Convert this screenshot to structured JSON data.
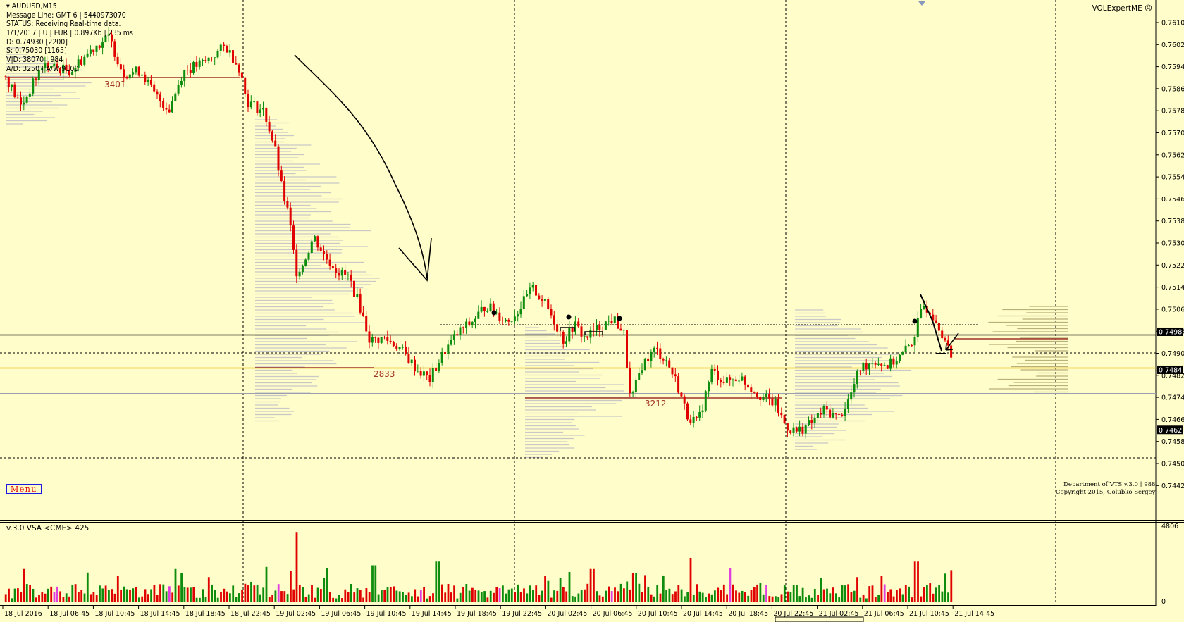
{
  "header": {
    "symbol_timeframe": "AUDUSD,M15",
    "lines": [
      "Message Line: GMT 6 | 5440973070",
      "STATUS:  Receiving Real-time data.",
      "1/1/2017 | U | EUR | 0.897Kb | 235 ms",
      "D: 0.74930  [2200]",
      "S: 0.75030  [1165]",
      "V|D: 38070 | 984",
      "A/D: 3250 | A/W 9100"
    ]
  },
  "indicator_name": "VOLExpertME",
  "menu_label": "Menu",
  "copyright": {
    "line1": "Department of VTS  v.3.0 | 988",
    "line2": "Copyright 2015, Golubko Sergey"
  },
  "subwindow": {
    "title": "v.3.0 VSA <CME> 425",
    "scale_max": "4806",
    "scale_min": "0"
  },
  "price_axis": {
    "ticks": [
      "0.76105",
      "0.76025",
      "0.75945",
      "0.75865",
      "0.75785",
      "0.75705",
      "0.75625",
      "0.75545",
      "0.75465",
      "0.75385",
      "0.75305",
      "0.75225",
      "0.75145",
      "0.75065",
      "0.74985",
      "0.74905",
      "0.74825",
      "0.74745",
      "0.74665",
      "0.74585",
      "0.74505",
      "0.74425"
    ],
    "labels": [
      {
        "price": 0.74983,
        "text": "0.74983"
      },
      {
        "price": 0.74845,
        "text": "0.74845"
      },
      {
        "price": 0.74627,
        "text": "0.74627"
      }
    ]
  },
  "time_axis": [
    "18 Jul 2016",
    "18 Jul 06:45",
    "18 Jul 10:45",
    "18 Jul 14:45",
    "18 Jul 18:45",
    "18 Jul 22:45",
    "19 Jul 02:45",
    "19 Jul 06:45",
    "19 Jul 10:45",
    "19 Jul 14:45",
    "19 Jul 18:45",
    "19 Jul 22:45",
    "20 Jul 02:45",
    "20 Jul 06:45",
    "20 Jul 10:45",
    "20 Jul 14:45",
    "20 Jul 18:45",
    "20 Jul 22:45",
    "21 Jul 02:45",
    "21 Jul 06:45",
    "21 Jul 10:45",
    "21 Jul 14:45"
  ],
  "volume_labels": [
    "3401",
    "2833",
    "3212"
  ],
  "colors": {
    "background": "#fffdc9",
    "bull": "#0d8c0d",
    "bear": "#e00000",
    "profile": "#c8c8c8",
    "resistance": "#000000",
    "support_gold": "#e8b000",
    "poc": "#a0342a"
  }
}
